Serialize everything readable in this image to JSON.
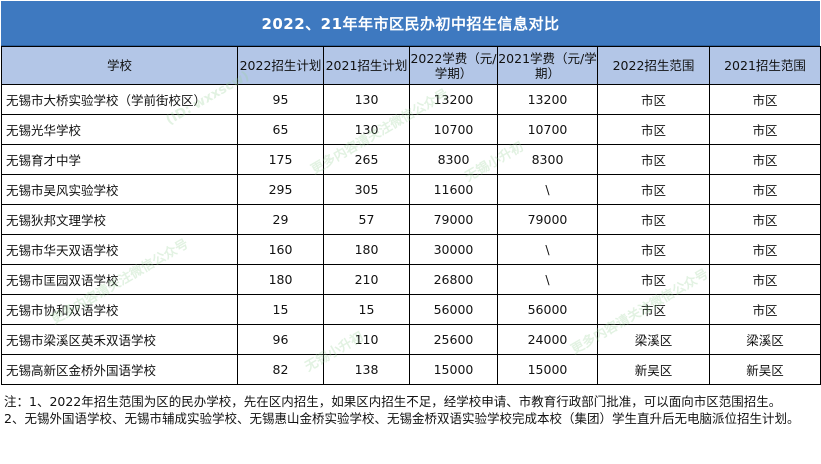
{
  "title": "2022、21年年市区民办初中招生信息对比",
  "columns": [
    "学校",
    "2022招生计划",
    "2021招生计划",
    "2022学费（元/学期）",
    "2021学费（元/学期）",
    "2022招生范围",
    "2021招生范围"
  ],
  "rows": [
    {
      "school": "无锡市大桥实验学校（学前街校区）",
      "plan2022": "95",
      "plan2021": "130",
      "fee2022": "13200",
      "fee2021": "13200",
      "range2022": "市区",
      "range2021": "市区"
    },
    {
      "school": "无锡光华学校",
      "plan2022": "65",
      "plan2021": "130",
      "fee2022": "10700",
      "fee2021": "10700",
      "range2022": "市区",
      "range2021": "市区"
    },
    {
      "school": "无锡育才中学",
      "plan2022": "175",
      "plan2021": "265",
      "fee2022": "8300",
      "fee2021": "8300",
      "range2022": "市区",
      "range2021": "市区"
    },
    {
      "school": "无锡市吴风实验学校",
      "plan2022": "295",
      "plan2021": "305",
      "fee2022": "11600",
      "fee2021": "\\",
      "range2022": "市区",
      "range2021": "市区"
    },
    {
      "school": "无锡狄邦文理学校",
      "plan2022": "29",
      "plan2021": "57",
      "fee2022": "79000",
      "fee2021": "79000",
      "range2022": "市区",
      "range2021": "市区"
    },
    {
      "school": "无锡市华天双语学校",
      "plan2022": "160",
      "plan2021": "180",
      "fee2022": "30000",
      "fee2021": "\\",
      "range2022": "市区",
      "range2021": "市区"
    },
    {
      "school": "无锡市匡园双语学校",
      "plan2022": "180",
      "plan2021": "210",
      "fee2022": "26800",
      "fee2021": "\\",
      "range2022": "市区",
      "range2021": "市区"
    },
    {
      "school": "无锡市协和双语学校",
      "plan2022": "15",
      "plan2021": "15",
      "fee2022": "56000",
      "fee2021": "56000",
      "range2022": "市区",
      "range2021": "市区"
    },
    {
      "school": "无锡市梁溪区英禾双语学校",
      "plan2022": "96",
      "plan2021": "110",
      "fee2022": "25600",
      "fee2021": "24000",
      "range2022": "梁溪区",
      "range2021": "梁溪区"
    },
    {
      "school": "无锡高新区金桥外国语学校",
      "plan2022": "82",
      "plan2021": "138",
      "fee2022": "15000",
      "fee2021": "15000",
      "range2022": "新吴区",
      "range2021": "新吴区"
    }
  ],
  "notes": [
    "注：1、2022年招生范围为区的民办学校，先在区内招生，如果区内招生不足，经学校申请、市教育行政部门批准，可以面向市区范围招生。",
    "2、无锡外国语学校、无锡市辅成实验学校、无锡惠山金桥实验学校、无锡金桥双语实验学校完成本校（集团）学生直升后无电脑派位招生计划。"
  ],
  "watermark": {
    "texts": [
      "更多内容请关注微信公众号",
      "无锡小升初",
      "(ID: wxxscw)"
    ],
    "color": "#96d296"
  },
  "colors": {
    "title_bg": "#3e79c0",
    "header_bg": "#b3c6e7",
    "border": "#000000"
  }
}
